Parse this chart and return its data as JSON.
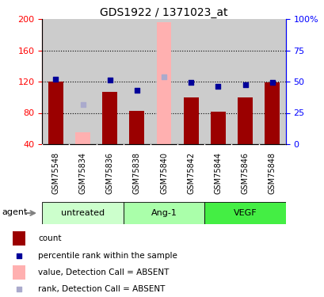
{
  "title": "GDS1922 / 1371023_at",
  "samples": [
    "GSM75548",
    "GSM75834",
    "GSM75836",
    "GSM75838",
    "GSM75840",
    "GSM75842",
    "GSM75844",
    "GSM75846",
    "GSM75848"
  ],
  "bar_values": [
    120,
    55,
    107,
    83,
    196,
    100,
    82,
    100,
    119
  ],
  "bar_absent": [
    false,
    true,
    false,
    false,
    true,
    false,
    false,
    false,
    false
  ],
  "rank_values": [
    123,
    91,
    122,
    109,
    126,
    119,
    114,
    116,
    119
  ],
  "rank_absent": [
    false,
    true,
    false,
    false,
    true,
    false,
    false,
    false,
    false
  ],
  "bar_color_present": "#9B0000",
  "bar_color_absent": "#FFB0B0",
  "rank_color_present": "#000099",
  "rank_color_absent": "#AAAACC",
  "bar_width": 0.55,
  "ylim_left": [
    40,
    200
  ],
  "ylim_right": [
    0,
    100
  ],
  "yticks_left": [
    40,
    80,
    120,
    160,
    200
  ],
  "yticks_right": [
    0,
    25,
    50,
    75,
    100
  ],
  "ytick_labels_right": [
    "0",
    "25",
    "50",
    "75",
    "100%"
  ],
  "groups": [
    {
      "label": "untreated",
      "indices": [
        0,
        1,
        2
      ],
      "color": "#CCFFCC"
    },
    {
      "label": "Ang-1",
      "indices": [
        3,
        4,
        5
      ],
      "color": "#AAFFAA"
    },
    {
      "label": "VEGF",
      "indices": [
        6,
        7,
        8
      ],
      "color": "#44EE44"
    }
  ],
  "agent_label": "agent",
  "bg_color": "#FFFFFF",
  "plot_bg": "#FFFFFF",
  "tick_bg": "#CCCCCC",
  "grid_yticks": [
    80,
    120,
    160
  ]
}
